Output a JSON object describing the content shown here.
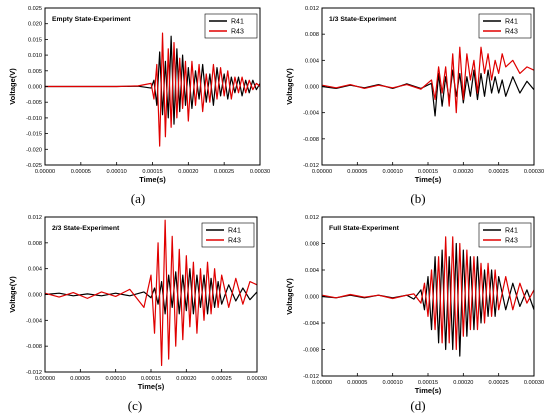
{
  "chart_data": [
    {
      "type": "line",
      "title": "Empty State-Experiment",
      "caption": "(a)",
      "xlabel": "Time(s)",
      "ylabel": "Voltage(V)",
      "xlim": [
        0,
        0.0003
      ],
      "ylim": [
        -0.025,
        0.025
      ],
      "xticks": [
        "0.00000",
        "0.00005",
        "0.00010",
        "0.00015",
        "0.00020",
        "0.00025",
        "0.00030"
      ],
      "yticks": [
        "-0.025",
        "-0.020",
        "-0.015",
        "-0.010",
        "-0.005",
        "0.000",
        "0.005",
        "0.010",
        "0.015",
        "0.020",
        "0.025"
      ],
      "legend": [
        "R41",
        "R43"
      ],
      "series": [
        {
          "name": "R41",
          "color": "#000000",
          "x": [
            0,
            0.0001,
            0.00013,
            0.000148,
            0.000152,
            0.000156,
            0.00016,
            0.000164,
            0.000168,
            0.000172,
            0.000176,
            0.00018,
            0.000184,
            0.000188,
            0.000192,
            0.000196,
            0.0002,
            0.000205,
            0.00021,
            0.000215,
            0.00022,
            0.000225,
            0.00023,
            0.000235,
            0.00024,
            0.000245,
            0.00025,
            0.000255,
            0.00026,
            0.000265,
            0.00027,
            0.000275,
            0.00028,
            0.000285,
            0.00029,
            0.000295,
            0.0003
          ],
          "values": [
            0,
            0,
            0.0001,
            -0.0005,
            0.002,
            -0.006,
            0.011,
            -0.009,
            0.008,
            -0.01,
            0.016,
            -0.012,
            0.012,
            -0.008,
            0.01,
            -0.006,
            0.006,
            -0.007,
            0.005,
            -0.004,
            0.007,
            -0.005,
            0.004,
            -0.006,
            0.006,
            -0.003,
            0.004,
            -0.004,
            0.003,
            -0.002,
            0.003,
            -0.003,
            0.002,
            -0.002,
            0.002,
            -0.001,
            0.001
          ]
        },
        {
          "name": "R43",
          "color": "#e00000",
          "x": [
            0,
            0.0001,
            0.00013,
            0.000148,
            0.000152,
            0.000156,
            0.00016,
            0.000164,
            0.000168,
            0.000172,
            0.000176,
            0.00018,
            0.000184,
            0.000188,
            0.000192,
            0.000196,
            0.0002,
            0.000205,
            0.00021,
            0.000215,
            0.00022,
            0.000225,
            0.00023,
            0.000235,
            0.00024,
            0.000245,
            0.00025,
            0.000255,
            0.00026,
            0.000265,
            0.00027,
            0.000275,
            0.00028,
            0.000285,
            0.00029,
            0.000295,
            0.0003
          ],
          "values": [
            0,
            0,
            0.0002,
            0.001,
            -0.004,
            0.007,
            -0.019,
            0.017,
            -0.016,
            0.012,
            -0.013,
            0.014,
            -0.01,
            0.009,
            -0.007,
            0.008,
            -0.011,
            0.008,
            -0.006,
            0.007,
            -0.008,
            0.004,
            -0.005,
            0.007,
            -0.004,
            0.006,
            -0.003,
            0.005,
            -0.004,
            0.003,
            -0.002,
            0.003,
            -0.002,
            0.002,
            -0.001,
            0.001,
            0
          ]
        }
      ]
    },
    {
      "type": "line",
      "title": "1/3 State-Experiment",
      "caption": "(b)",
      "xlabel": "Time(s)",
      "ylabel": "Voltage(V)",
      "xlim": [
        0,
        0.0003
      ],
      "ylim": [
        -0.012,
        0.012
      ],
      "xticks": [
        "0.00000",
        "0.00005",
        "0.00010",
        "0.00015",
        "0.00020",
        "0.00025",
        "0.00030"
      ],
      "yticks": [
        "-0.012",
        "-0.008",
        "-0.004",
        "0.000",
        "0.004",
        "0.008",
        "0.012"
      ],
      "legend": [
        "R41",
        "R43"
      ],
      "series": [
        {
          "name": "R41",
          "color": "#000000",
          "x": [
            0,
            2e-05,
            4e-05,
            6e-05,
            8e-05,
            0.0001,
            0.00012,
            0.00014,
            0.000155,
            0.00016,
            0.000165,
            0.00017,
            0.000175,
            0.00018,
            0.000185,
            0.00019,
            0.000195,
            0.0002,
            0.000205,
            0.00021,
            0.000215,
            0.00022,
            0.000225,
            0.00023,
            0.000235,
            0.00024,
            0.000245,
            0.00025,
            0.000255,
            0.00026,
            0.00027,
            0.00028,
            0.00029,
            0.0003
          ],
          "values": [
            0,
            -0.0003,
            0.0002,
            -0.0002,
            0.0003,
            -0.0003,
            0.0004,
            -0.0003,
            0.0005,
            -0.0045,
            0.002,
            -0.003,
            0.0015,
            -0.002,
            0.0025,
            -0.0015,
            0.002,
            -0.0025,
            0.0015,
            -0.0015,
            0.0025,
            -0.002,
            0.002,
            -0.0015,
            0.0025,
            -0.001,
            0.0015,
            -0.001,
            0.001,
            -0.0015,
            0.0015,
            -0.001,
            0.0008,
            -0.0005
          ]
        },
        {
          "name": "R43",
          "color": "#e00000",
          "x": [
            0,
            2e-05,
            4e-05,
            6e-05,
            8e-05,
            0.0001,
            0.00012,
            0.00014,
            0.000155,
            0.00016,
            0.000165,
            0.00017,
            0.000175,
            0.00018,
            0.000185,
            0.00019,
            0.000195,
            0.0002,
            0.000205,
            0.00021,
            0.000215,
            0.00022,
            0.000225,
            0.00023,
            0.000235,
            0.00024,
            0.000245,
            0.00025,
            0.000255,
            0.00026,
            0.00027,
            0.00028,
            0.00029,
            0.0003
          ],
          "values": [
            0.0002,
            -0.0002,
            0.0003,
            -0.0003,
            0.0002,
            -0.0002,
            0.0003,
            -0.0004,
            0.001,
            -0.002,
            0.003,
            -0.001,
            0.003,
            -0.003,
            0.005,
            -0.004,
            0.006,
            -0.002,
            0.005,
            0.001,
            0.004,
            -0.001,
            0.006,
            0.002,
            0.005,
            0.001,
            0.004,
            0.002,
            0.005,
            0.003,
            0.004,
            0.002,
            0.003,
            0.0025
          ]
        }
      ]
    },
    {
      "type": "line",
      "title": "2/3 State-Experiment",
      "caption": "(c)",
      "xlabel": "Time(s)",
      "ylabel": "Voltage(V)",
      "xlim": [
        0,
        0.0003
      ],
      "ylim": [
        -0.012,
        0.012
      ],
      "xticks": [
        "0.00000",
        "0.00005",
        "0.00010",
        "0.00015",
        "0.00020",
        "0.00025",
        "0.00030"
      ],
      "yticks": [
        "-0.012",
        "-0.008",
        "-0.004",
        "0.000",
        "0.004",
        "0.008",
        "0.012"
      ],
      "legend": [
        "R41",
        "R43"
      ],
      "series": [
        {
          "name": "R41",
          "color": "#000000",
          "x": [
            0,
            2e-05,
            4e-05,
            6e-05,
            8e-05,
            0.0001,
            0.00012,
            0.00014,
            0.00015,
            0.000155,
            0.00016,
            0.000165,
            0.00017,
            0.000175,
            0.00018,
            0.000185,
            0.00019,
            0.000195,
            0.0002,
            0.000205,
            0.00021,
            0.000215,
            0.00022,
            0.000225,
            0.00023,
            0.000235,
            0.00024,
            0.000245,
            0.00025,
            0.00026,
            0.00027,
            0.00028,
            0.00029,
            0.0003
          ],
          "values": [
            0,
            0.0002,
            -0.0002,
            0.0001,
            -0.0002,
            0.0002,
            -0.0002,
            0.0004,
            -0.0005,
            0.001,
            -0.0015,
            0.002,
            -0.003,
            0.003,
            -0.002,
            0.0035,
            -0.003,
            0.003,
            -0.0025,
            0.004,
            -0.003,
            0.003,
            -0.002,
            0.003,
            -0.003,
            0.0025,
            -0.002,
            0.002,
            -0.0015,
            0.0015,
            -0.001,
            0.001,
            -0.0008,
            0.0004
          ]
        },
        {
          "name": "R43",
          "color": "#e00000",
          "x": [
            0,
            2e-05,
            4e-05,
            6e-05,
            8e-05,
            0.0001,
            0.00012,
            0.00014,
            0.00015,
            0.000155,
            0.00016,
            0.000165,
            0.00017,
            0.000175,
            0.00018,
            0.000185,
            0.00019,
            0.000195,
            0.0002,
            0.000205,
            0.00021,
            0.000215,
            0.00022,
            0.000225,
            0.00023,
            0.000235,
            0.00024,
            0.000245,
            0.00025,
            0.00026,
            0.00027,
            0.00028,
            0.00029,
            0.0003
          ],
          "values": [
            0.0002,
            -0.0004,
            0.0003,
            -0.0006,
            0.0004,
            -0.0003,
            0.0008,
            -0.002,
            0.003,
            -0.006,
            0.008,
            -0.011,
            0.0115,
            -0.01,
            0.009,
            -0.008,
            0.007,
            -0.007,
            0.006,
            -0.005,
            0.005,
            -0.006,
            0.004,
            -0.004,
            0.005,
            -0.003,
            0.004,
            -0.002,
            0.003,
            -0.002,
            0.0025,
            -0.0015,
            0.002,
            0.0015
          ]
        }
      ]
    },
    {
      "type": "line",
      "title": "Full State-Experiment",
      "caption": "(d)",
      "xlabel": "Time(s)",
      "ylabel": "Voltage(V)",
      "xlim": [
        0,
        0.0003
      ],
      "ylim": [
        -0.012,
        0.012
      ],
      "xticks": [
        "0.00000",
        "0.00005",
        "0.00010",
        "0.00015",
        "0.00020",
        "0.00025",
        "0.00030"
      ],
      "yticks": [
        "-0.012",
        "-0.008",
        "-0.004",
        "0.000",
        "0.004",
        "0.008",
        "0.012"
      ],
      "legend": [
        "R41",
        "R43"
      ],
      "series": [
        {
          "name": "R41",
          "color": "#000000",
          "x": [
            0,
            2e-05,
            4e-05,
            6e-05,
            8e-05,
            0.0001,
            0.00012,
            0.00013,
            0.00014,
            0.000145,
            0.00015,
            0.000155,
            0.00016,
            0.000165,
            0.00017,
            0.000175,
            0.00018,
            0.000185,
            0.00019,
            0.000195,
            0.0002,
            0.000205,
            0.00021,
            0.000215,
            0.00022,
            0.000225,
            0.00023,
            0.000235,
            0.00024,
            0.000245,
            0.00025,
            0.00026,
            0.00027,
            0.00028,
            0.00029,
            0.0003
          ],
          "values": [
            0,
            -0.0002,
            0.0002,
            -0.0002,
            0.0002,
            -0.0002,
            0.0002,
            -0.0004,
            0.001,
            -0.002,
            0.003,
            -0.005,
            0.006,
            -0.007,
            0.007,
            -0.008,
            0.006,
            -0.008,
            0.008,
            -0.009,
            0.007,
            -0.006,
            0.006,
            -0.005,
            0.006,
            -0.004,
            0.004,
            -0.003,
            0.004,
            -0.003,
            0.003,
            -0.002,
            0.002,
            -0.0015,
            0.001,
            -0.002
          ]
        },
        {
          "name": "R43",
          "color": "#e00000",
          "x": [
            0,
            2e-05,
            4e-05,
            6e-05,
            8e-05,
            0.0001,
            0.00012,
            0.00013,
            0.00014,
            0.000145,
            0.00015,
            0.000155,
            0.00016,
            0.000165,
            0.00017,
            0.000175,
            0.00018,
            0.000185,
            0.00019,
            0.000195,
            0.0002,
            0.000205,
            0.00021,
            0.000215,
            0.00022,
            0.000225,
            0.00023,
            0.000235,
            0.00024,
            0.000245,
            0.00025,
            0.00026,
            0.00027,
            0.00028,
            0.00029,
            0.0003
          ],
          "values": [
            0.0002,
            -0.0002,
            0.0003,
            -0.0001,
            0.0002,
            -0.0003,
            0.0002,
            0.0004,
            -0.001,
            0.002,
            -0.003,
            0.004,
            -0.005,
            0.006,
            -0.007,
            0.009,
            -0.007,
            0.009,
            -0.008,
            0.008,
            -0.006,
            0.007,
            -0.005,
            0.006,
            -0.005,
            0.005,
            -0.004,
            0.005,
            -0.003,
            0.004,
            -0.002,
            0.003,
            -0.002,
            0.002,
            -0.001,
            0.001
          ]
        }
      ]
    }
  ]
}
